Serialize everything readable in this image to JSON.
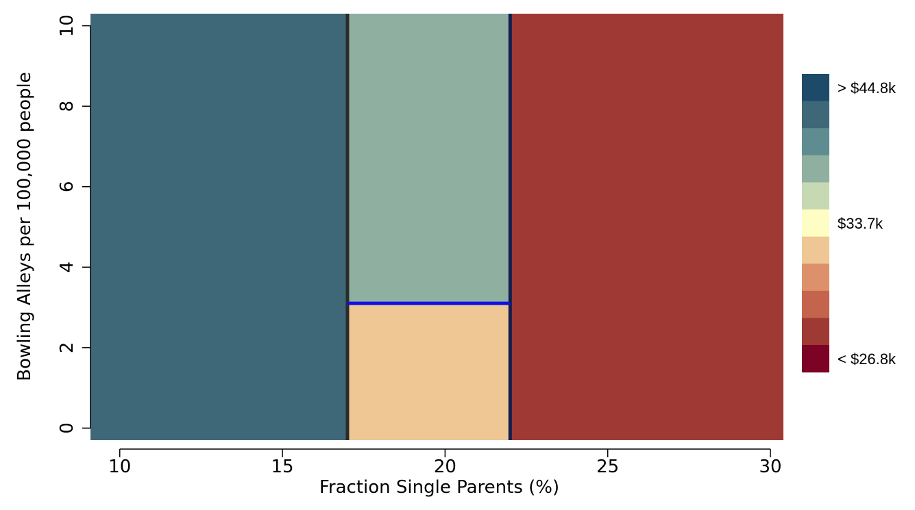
{
  "chart_data": {
    "type": "heatmap",
    "title": "",
    "xlabel": "Fraction Single Parents (%)",
    "ylabel": "Bowling Alleys per 100,000 people",
    "xlim": [
      9.1,
      30.4
    ],
    "ylim": [
      -0.3,
      10.3
    ],
    "xticks": [
      10,
      15,
      20,
      25,
      30
    ],
    "yticks": [
      0,
      2,
      4,
      6,
      8,
      10
    ],
    "regions": [
      {
        "x": [
          9.1,
          17.0
        ],
        "y": [
          -0.3,
          10.3
        ],
        "color": "#3e6878",
        "bin": 1
      },
      {
        "x": [
          17.0,
          22.0
        ],
        "y": [
          3.1,
          10.3
        ],
        "color": "#8fb0a0",
        "bin": 3
      },
      {
        "x": [
          17.0,
          22.0
        ],
        "y": [
          -0.3,
          3.1
        ],
        "color": "#eec794",
        "bin": 6
      },
      {
        "x": [
          22.0,
          30.4
        ],
        "y": [
          -0.3,
          10.3
        ],
        "color": "#9e3934",
        "bin": 9
      }
    ],
    "split_lines": [
      {
        "orientation": "vertical",
        "x": 17.0,
        "y": [
          -0.3,
          10.3
        ],
        "color": "#2b2b2b"
      },
      {
        "orientation": "vertical",
        "x": 22.0,
        "y": [
          -0.3,
          10.3
        ],
        "color": "#121d4f"
      },
      {
        "orientation": "horizontal",
        "y": 3.1,
        "x": [
          17.0,
          22.0
        ],
        "color": "#1010e6"
      }
    ],
    "legend": {
      "position": "right",
      "colors": [
        "#1e4a6a",
        "#3e6878",
        "#5f8c90",
        "#8fb0a0",
        "#c6d9b3",
        "#fefec4",
        "#eec794",
        "#dd916a",
        "#c5644d",
        "#9e3934",
        "#7c0324"
      ],
      "labels": [
        {
          "bin": 0,
          "text": "> $44.8k"
        },
        {
          "bin": 5,
          "text": "$33.7k"
        },
        {
          "bin": 10,
          "text": "< $26.8k"
        }
      ]
    }
  }
}
